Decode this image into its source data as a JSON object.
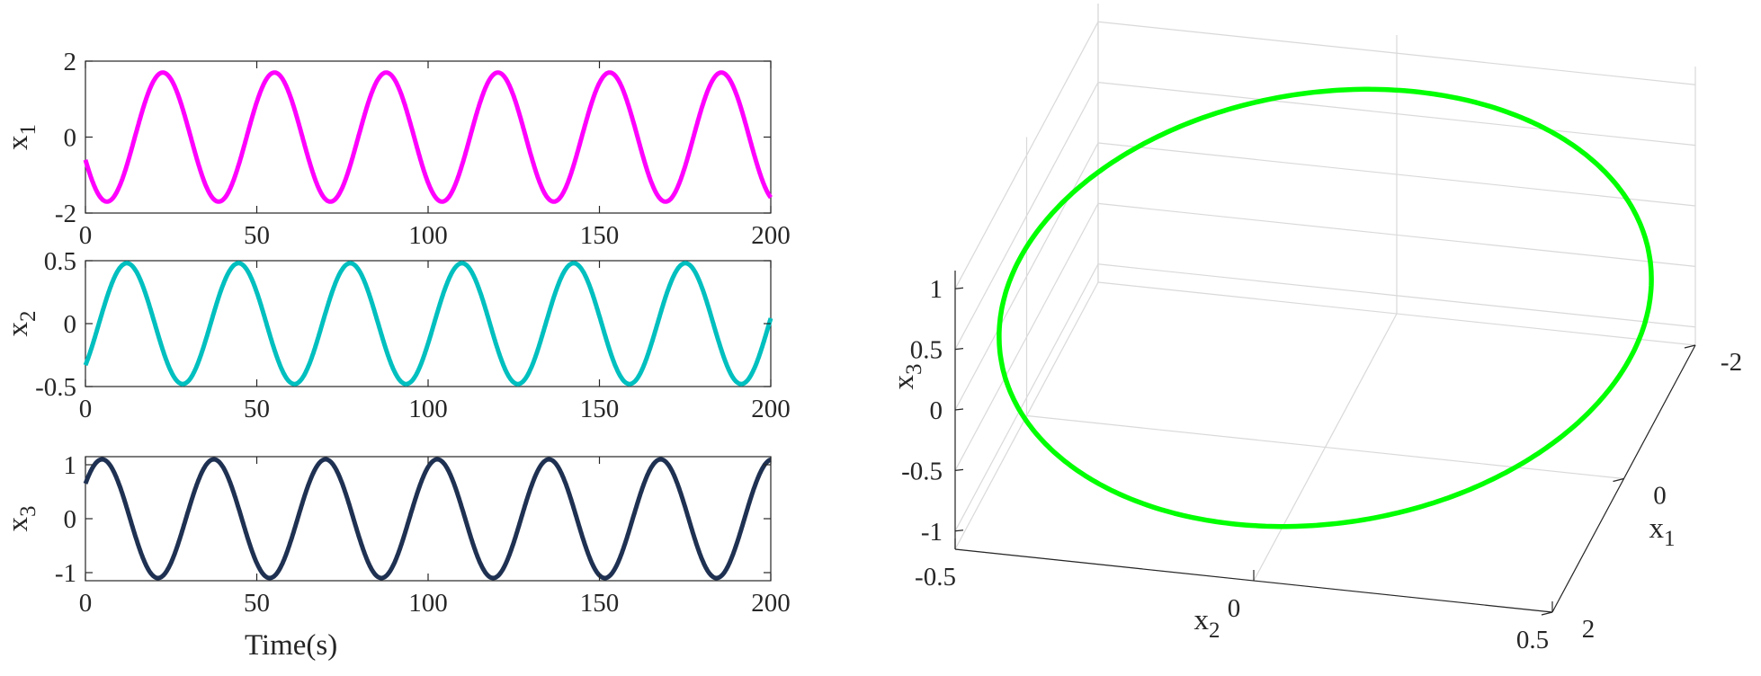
{
  "chart_data": [
    {
      "type": "line",
      "panel": "x1",
      "ylabel": "x",
      "ylabel_sub": "1",
      "xlabel": "",
      "xlim": [
        0,
        200
      ],
      "ylim": [
        -2,
        2
      ],
      "xticks": [
        "0",
        "50",
        "100",
        "150",
        "200"
      ],
      "yticks": [
        "-2",
        "0",
        "2"
      ],
      "series": [
        {
          "color": "#ff00ff",
          "amplitude": 1.7,
          "period": 32.6,
          "initial_value": -0.6,
          "x": [
            0,
            5.6,
            21.9,
            38.2,
            54.5,
            70.8,
            87.1,
            103.4,
            119.7,
            136.0,
            152.3,
            168.6,
            184.9,
            200
          ],
          "y": [
            -0.6,
            -1.7,
            1.7,
            -1.7,
            1.7,
            -1.7,
            1.7,
            -1.7,
            1.7,
            -1.7,
            1.7,
            -1.7,
            1.7,
            -1.6
          ]
        }
      ]
    },
    {
      "type": "line",
      "panel": "x2",
      "ylabel": "x",
      "ylabel_sub": "2",
      "xlabel": "",
      "xlim": [
        0,
        200
      ],
      "ylim": [
        -0.5,
        0.5
      ],
      "xticks": [
        "0",
        "50",
        "100",
        "150",
        "200"
      ],
      "yticks": [
        "-0.5",
        "0",
        "0.5"
      ],
      "series": [
        {
          "color": "#00bfbf",
          "amplitude": 0.48,
          "period": 32.6,
          "initial_value": -0.33,
          "x": [
            0,
            13.2,
            29.5,
            45.8,
            62.1,
            78.4,
            94.7,
            111.0,
            127.3,
            143.6,
            159.9,
            176.2,
            192.5,
            200
          ],
          "y": [
            -0.33,
            0.48,
            -0.48,
            0.48,
            -0.48,
            0.48,
            -0.48,
            0.48,
            -0.48,
            0.48,
            -0.48,
            0.48,
            -0.48,
            -0.05
          ]
        }
      ]
    },
    {
      "type": "line",
      "panel": "x3",
      "ylabel": "x",
      "ylabel_sub": "3",
      "xlabel": "Time(s)",
      "xlim": [
        0,
        200
      ],
      "ylim": [
        -1.15,
        1.15
      ],
      "xticks": [
        "0",
        "50",
        "100",
        "150",
        "200"
      ],
      "yticks": [
        "-1",
        "0",
        "1"
      ],
      "series": [
        {
          "color": "#1f3152",
          "amplitude": 1.1,
          "period": 32.6,
          "initial_value": 0.65,
          "x": [
            0,
            5.4,
            21.7,
            38.0,
            54.3,
            70.6,
            86.9,
            103.2,
            119.5,
            135.8,
            152.1,
            168.4,
            184.7,
            200
          ],
          "y": [
            0.65,
            1.1,
            -1.1,
            1.1,
            -1.1,
            1.1,
            -1.1,
            1.1,
            -1.1,
            1.1,
            -1.1,
            1.1,
            -1.1,
            1.05
          ]
        }
      ]
    },
    {
      "type": "line3d",
      "panel": "phase-portrait",
      "xlabel": "x",
      "xlabel_sub": "1",
      "ylabel": "x",
      "ylabel_sub": "2",
      "zlabel": "x",
      "zlabel_sub": "3",
      "xlim": [
        -2,
        2
      ],
      "ylim": [
        -0.5,
        0.5
      ],
      "zlim": [
        -1.15,
        1.15
      ],
      "xticks": [
        "-2",
        "0",
        "2"
      ],
      "yticks": [
        "-0.5",
        "0",
        "0.5"
      ],
      "zticks": [
        "-1",
        "-0.5",
        "0",
        "0.5",
        "1"
      ],
      "grid": true,
      "series": [
        {
          "color": "#00ff00",
          "shape": "closed-orbit",
          "x1_amplitude": 1.7,
          "x2_amplitude": 0.48,
          "x3_amplitude": 1.1
        }
      ]
    }
  ]
}
